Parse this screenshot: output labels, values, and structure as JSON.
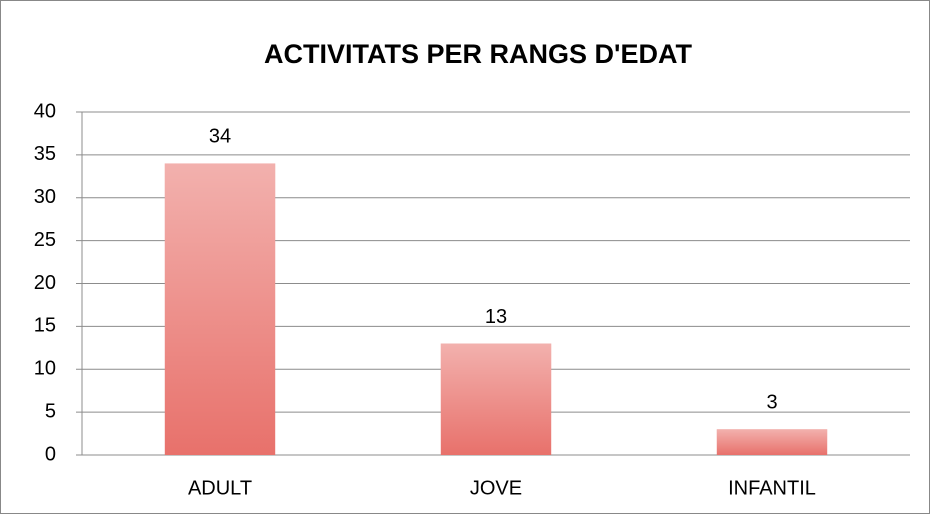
{
  "chart_data": {
    "type": "bar",
    "title": "ACTIVITATS PER RANGS D'EDAT",
    "categories": [
      "ADULT",
      "JOVE",
      "INFANTIL"
    ],
    "values": [
      34,
      13,
      3
    ],
    "color": "#e8716b",
    "ylim": [
      0,
      40
    ],
    "yticks": [
      0,
      5,
      10,
      15,
      20,
      25,
      30,
      35,
      40
    ],
    "grid": true,
    "data_labels": true
  }
}
